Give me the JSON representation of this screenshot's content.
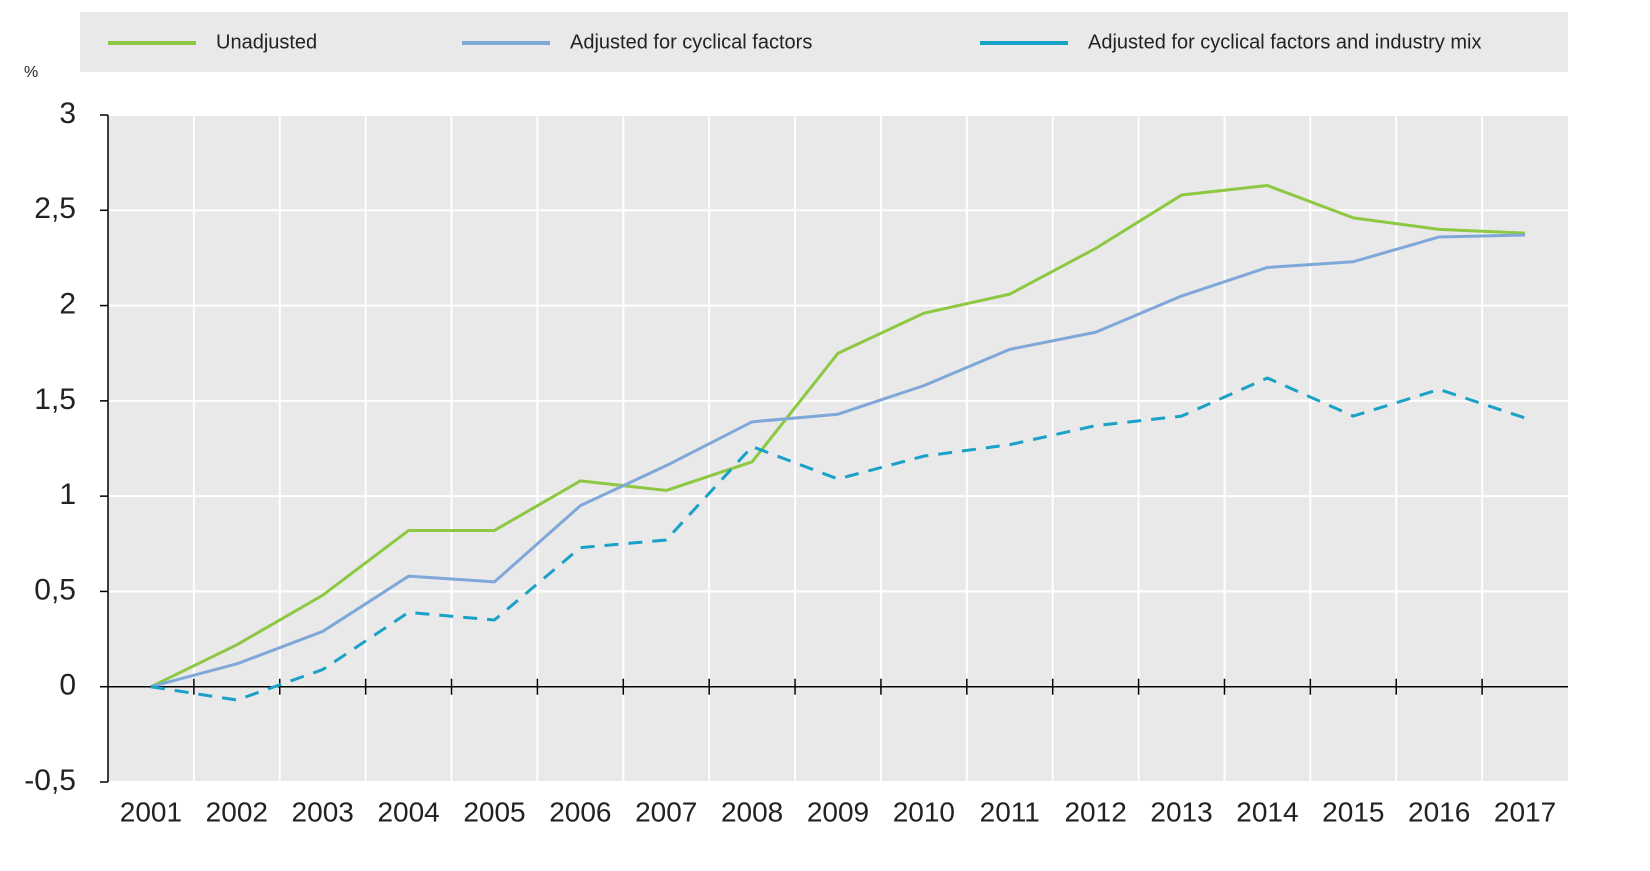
{
  "chart_data": {
    "type": "line",
    "y_label": "%",
    "categories": [
      "2001",
      "2002",
      "2003",
      "2004",
      "2005",
      "2006",
      "2007",
      "2008",
      "2009",
      "2010",
      "2011",
      "2012",
      "2013",
      "2014",
      "2015",
      "2016",
      "2017"
    ],
    "series": [
      {
        "name": "Unadjusted",
        "color": "#8cc841",
        "line_style": "solid",
        "values": [
          0,
          0.22,
          0.48,
          0.82,
          0.82,
          1.08,
          1.03,
          1.18,
          1.75,
          1.96,
          2.06,
          2.3,
          2.58,
          2.63,
          2.46,
          2.4,
          2.38
        ]
      },
      {
        "name": "Adjusted for cyclical factors",
        "color": "#7fa8d9",
        "line_style": "solid",
        "values": [
          0,
          0.12,
          0.29,
          0.58,
          0.55,
          0.95,
          1.16,
          1.39,
          1.43,
          1.58,
          1.77,
          1.86,
          2.05,
          2.2,
          2.23,
          2.36,
          2.37
        ]
      },
      {
        "name": "Adjusted for cyclical factors and industry mix",
        "color": "#1aa1c7",
        "line_style": "dashed",
        "values": [
          0,
          -0.07,
          0.09,
          0.39,
          0.35,
          0.73,
          0.77,
          1.26,
          1.09,
          1.21,
          1.27,
          1.37,
          1.42,
          1.62,
          1.42,
          1.56,
          1.41
        ]
      }
    ],
    "ylim": [
      -0.5,
      3
    ],
    "yticks": [
      {
        "value": -0.5,
        "label": "-0,5"
      },
      0,
      {
        "value": 0.5,
        "label": "0,5"
      },
      1,
      {
        "value": 1.5,
        "label": "1,5"
      },
      2,
      {
        "value": 2.5,
        "label": "2,5"
      },
      3
    ],
    "grid": true,
    "legend": "top"
  }
}
